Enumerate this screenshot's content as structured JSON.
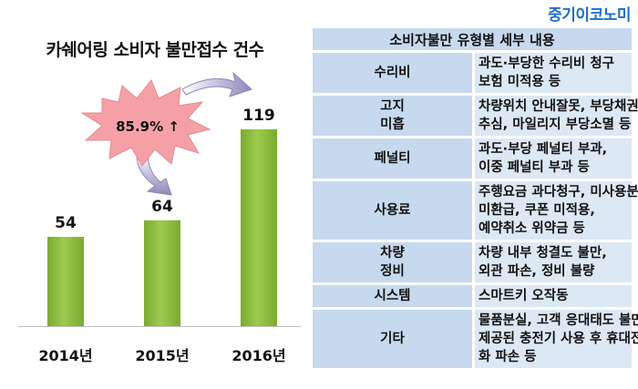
{
  "brand": "중기이코노미",
  "chart_title": "카쉐어링 소비자 불만접수 건수",
  "chart_data": {
    "type": "bar",
    "title": "카쉐어링 소비자 불만접수 건수",
    "categories": [
      "2014년",
      "2015년",
      "2016년"
    ],
    "values": [
      54,
      64,
      119
    ],
    "ylim": [
      0,
      130
    ],
    "bar_color": "#8cbf3f",
    "annotation": "85.9% ↑",
    "annotation_color": "#f5a0a6"
  },
  "table": {
    "header": "소비자불만 유형별 세부 내용",
    "header_color": "#c7d9ee",
    "cell_color": "#dde8f5",
    "rows": [
      {
        "cat": [
          "수리비"
        ],
        "desc": [
          "과도·부당한 수리비 청구",
          "보험 미적용 등"
        ]
      },
      {
        "cat": [
          "고지",
          "미흡"
        ],
        "desc": [
          "차량위치 안내잘못, 부당채권",
          "추심, 마일리지 부당소멸 등"
        ]
      },
      {
        "cat": [
          "페널티"
        ],
        "desc": [
          "과도·부당 페널티 부과,",
          "이중 페널티 부과 등"
        ]
      },
      {
        "cat": [
          "사용료"
        ],
        "desc": [
          "주행요금 과다청구, 미사용분",
          "미환급, 쿠폰 미적용,",
          "예약취소 위약금 등"
        ]
      },
      {
        "cat": [
          "차량",
          "정비"
        ],
        "desc": [
          "차량 내부 청결도 불만,",
          "외관 파손, 정비 불량"
        ]
      },
      {
        "cat": [
          "시스템"
        ],
        "desc": [
          "스마트키 오작동"
        ]
      },
      {
        "cat": [
          "기타"
        ],
        "desc": [
          "물품분실, 고객 응대태도 불만,",
          "제공된 충전기 사용 후 휴대전",
          "화 파손 등"
        ]
      }
    ]
  }
}
